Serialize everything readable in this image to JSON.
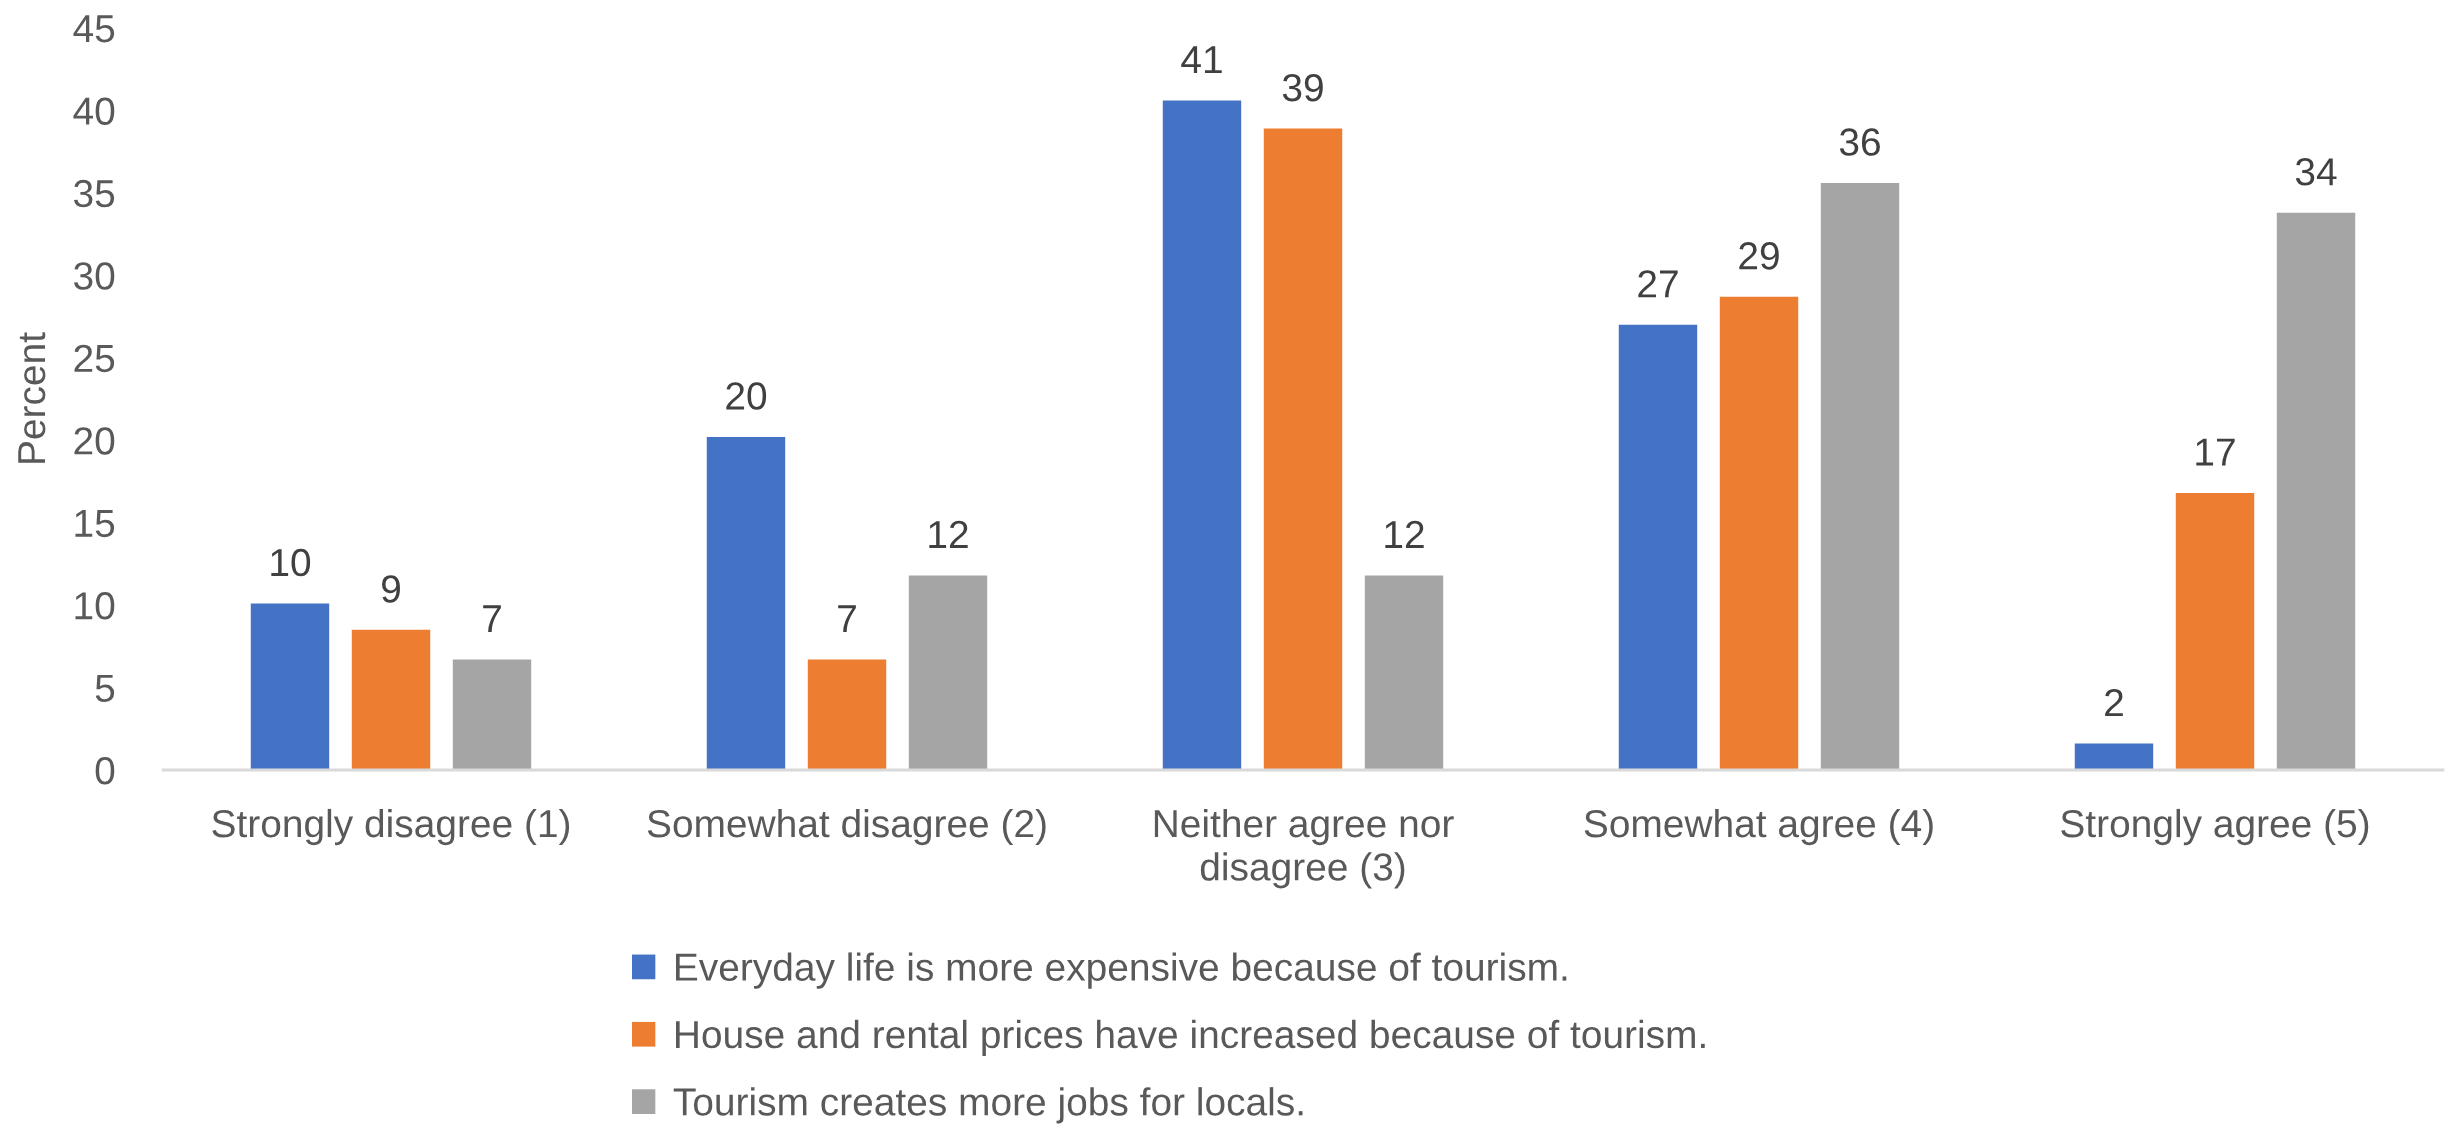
{
  "chart_data": {
    "type": "bar",
    "ylabel": "Percent",
    "categories": [
      "Strongly disagree (1)",
      "Somewhat disagree (2)",
      "Neither agree nor\ndisagree (3)",
      "Somewhat agree (4)",
      "Strongly agree (5)"
    ],
    "series": [
      {
        "name": "Everyday life is more expensive because of tourism.",
        "color": "#4472c4",
        "values": [
          10.1,
          20.2,
          40.6,
          27.0,
          1.6
        ],
        "value_labels": [
          "10",
          "20",
          "41",
          "27",
          "2"
        ]
      },
      {
        "name": "House and rental prices have increased because of tourism.",
        "color": "#ed7d31",
        "values": [
          8.5,
          6.7,
          38.9,
          28.7,
          16.8
        ],
        "value_labels": [
          "9",
          "7",
          "39",
          "29",
          "17"
        ]
      },
      {
        "name": "Tourism creates more jobs for locals.",
        "color": "#a5a5a5",
        "values": [
          6.7,
          11.8,
          11.8,
          35.6,
          33.8
        ],
        "value_labels": [
          "7",
          "12",
          "12",
          "36",
          "34"
        ]
      }
    ],
    "ylim": [
      0,
      45
    ],
    "yticks": [
      0,
      5,
      10,
      15,
      20,
      25,
      30,
      35,
      40,
      45
    ],
    "legend": "bottom"
  }
}
